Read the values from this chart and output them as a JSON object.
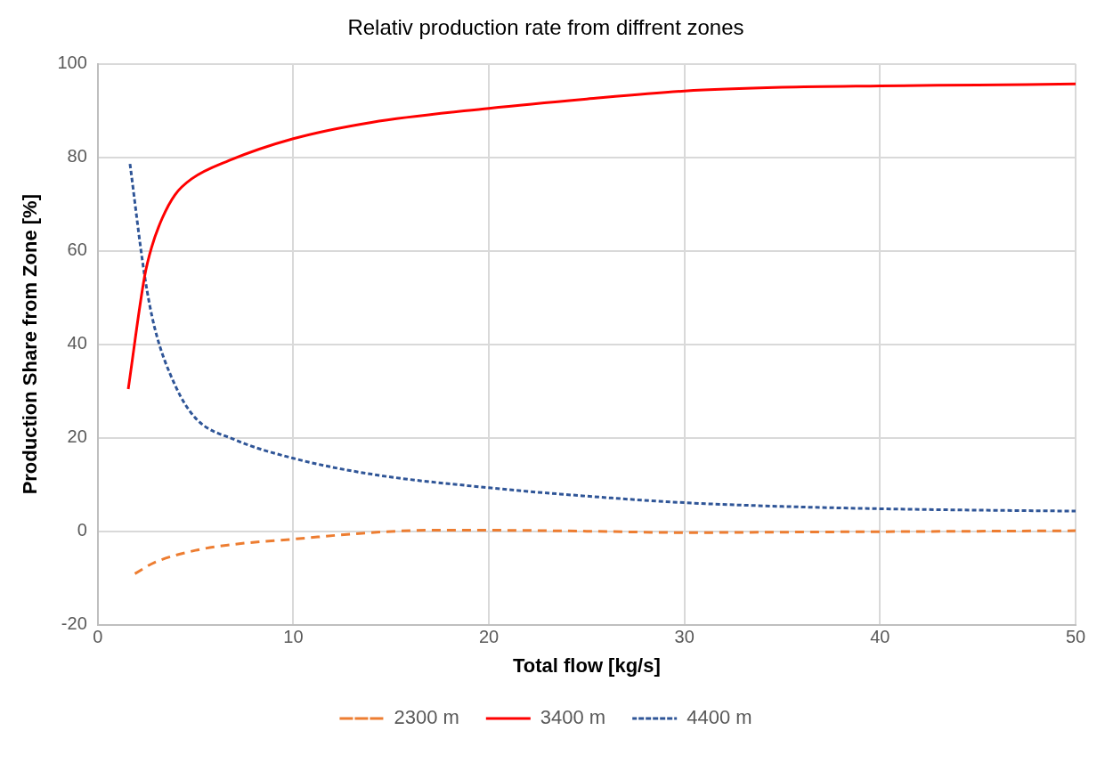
{
  "chart_data": {
    "type": "line",
    "title": "Relativ production rate from diffrent zones",
    "xlabel": "Total flow [kg/s]",
    "ylabel": "Production Share from Zone [%]",
    "xlim": [
      0,
      50
    ],
    "xticks": [
      0,
      10,
      20,
      30,
      40,
      50
    ],
    "ylim": [
      -20,
      100
    ],
    "yticks": [
      -20,
      0,
      20,
      40,
      60,
      80,
      100
    ],
    "grid": true,
    "legend": "bottom",
    "marker": "none",
    "series": [
      {
        "name": "2300 m",
        "color": "#ed7d31",
        "line_style": "dashed",
        "x": [
          1.9,
          2.9,
          5,
          7,
          10,
          14,
          17,
          20,
          25,
          30,
          35,
          40,
          45,
          50
        ],
        "values": [
          -9.1,
          -6.7,
          -4.1,
          -2.8,
          -1.7,
          -0.3,
          0.2,
          0.2,
          0,
          -0.3,
          -0.2,
          -0.1,
          0,
          0.1
        ]
      },
      {
        "name": "3400 m",
        "color": "#ff0000",
        "line_style": "solid",
        "x": [
          1.56,
          2.4,
          2.75,
          3.3,
          3.95,
          4.8,
          6.7,
          10,
          14,
          20,
          25,
          30,
          35,
          40,
          45,
          50
        ],
        "values": [
          30.4,
          54.6,
          60.7,
          67,
          72,
          75.4,
          79.3,
          84,
          87.5,
          90.5,
          92.5,
          94.2,
          95,
          95.3,
          95.5,
          95.7
        ]
      },
      {
        "name": "4400 m",
        "color": "#2f5597",
        "line_style": "dotted",
        "x": [
          1.65,
          2.4,
          2.9,
          3.95,
          5,
          7,
          10,
          14,
          20,
          25,
          30,
          35,
          40,
          45,
          50
        ],
        "values": [
          78.6,
          54.6,
          43.7,
          31.3,
          24.2,
          19.6,
          15.6,
          12.2,
          9.3,
          7.5,
          6.1,
          5.3,
          4.8,
          4.5,
          4.3
        ]
      }
    ]
  }
}
